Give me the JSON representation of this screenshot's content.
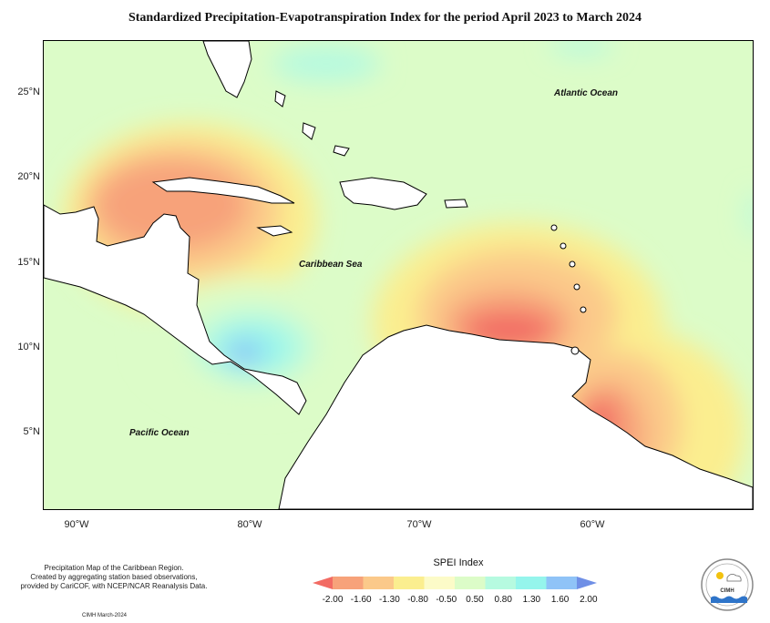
{
  "title": "Standardized Precipitation-Evapotranspiration Index for the period April 2023 to March 2024",
  "map": {
    "lat_ticks": [
      "25°N",
      "20°N",
      "15°N",
      "10°N",
      "5°N"
    ],
    "lon_ticks": [
      "90°W",
      "80°W",
      "70°W",
      "60°W"
    ],
    "labels": {
      "atlantic": "Atlantic Ocean",
      "caribbean": "Caribbean Sea",
      "pacific": "Pacific Ocean"
    },
    "colors": {
      "ocean_background": "#dcfcc8",
      "land": "#ffffff",
      "coast": "#000000"
    }
  },
  "info_text": [
    "Precipitation Map of the Caribbean Region.",
    "Created by aggregating station based observations,",
    "provided by CariCOF, with NCEP/NCAR Reanalysis Data."
  ],
  "credit": "CIMH March-2024",
  "legend": {
    "title": "SPEI Index",
    "labels": [
      "-2.00",
      "-1.60",
      "-1.30",
      "-0.80",
      "-0.50",
      "0.50",
      "0.80",
      "1.30",
      "1.60",
      "2.00"
    ],
    "colors": [
      "#f26b63",
      "#f7a27a",
      "#fbc98a",
      "#fbee8f",
      "#fcfbc8",
      "#dcfcc8",
      "#b6fae0",
      "#95f5ec",
      "#8fc3f7",
      "#6f8fe6"
    ]
  },
  "logo": {
    "text": "CIMH"
  }
}
